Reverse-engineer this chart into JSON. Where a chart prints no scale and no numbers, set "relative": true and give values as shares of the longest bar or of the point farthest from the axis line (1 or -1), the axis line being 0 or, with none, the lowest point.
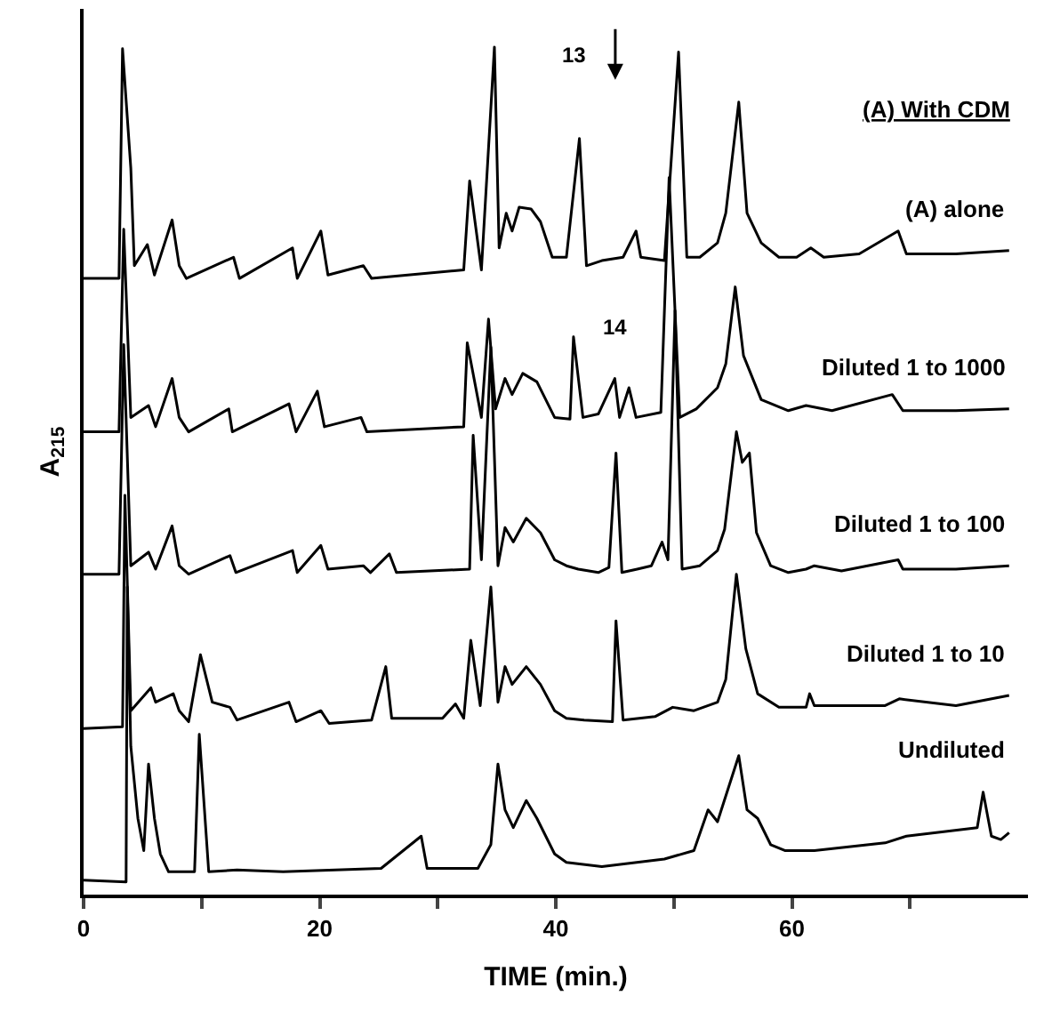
{
  "chart_data": {
    "type": "line",
    "xlabel": "TIME (min.)",
    "ylabel": "A$_{215}$",
    "relative": true,
    "xlim": [
      0,
      80
    ],
    "xticks": [
      0,
      {
        "value": 10,
        "label": null
      },
      20,
      {
        "value": 30,
        "label": null
      },
      40,
      {
        "value": 50,
        "label": null
      },
      60,
      {
        "value": 70,
        "label": null
      }
    ],
    "legend": false,
    "marker": "none",
    "tick_labels": "x",
    "annotations": [
      "(A) With CDM",
      "13",
      {
        "text": "14",
        "x": 45.0,
        "y": 0.609
      }
    ],
    "series": [
      {
        "name": "(A) alone",
        "color": "#000000",
        "x": [
          0,
          3.0,
          3.3,
          4.0,
          4.3,
          5.4,
          6.0,
          7.5,
          8.1,
          8.7,
          12.7,
          13.2,
          17.7,
          18.1,
          20.1,
          20.7,
          23.7,
          24.4,
          32.2,
          32.7,
          33.7,
          34.8,
          35.2,
          35.8,
          36.3,
          36.9,
          37.9,
          38.7,
          39.7,
          40.9,
          42.0,
          42.6,
          43.9,
          45.7,
          46.8,
          47.2,
          49.2,
          50.4,
          51.1,
          52.2,
          53.7,
          54.4,
          55.5,
          56.2,
          57.4,
          58.9,
          60.4,
          61.6,
          62.7,
          65.7,
          69.0,
          69.7,
          73.9,
          78.4
        ],
        "values": [
          0.727,
          0.727,
          0.998,
          0.857,
          0.742,
          0.767,
          0.731,
          0.796,
          0.742,
          0.727,
          0.752,
          0.727,
          0.763,
          0.727,
          0.783,
          0.731,
          0.742,
          0.727,
          0.737,
          0.842,
          0.737,
          1,
          0.763,
          0.804,
          0.783,
          0.811,
          0.809,
          0.794,
          0.752,
          0.752,
          0.892,
          0.742,
          0.748,
          0.752,
          0.783,
          0.752,
          0.748,
          0.994,
          0.752,
          0.752,
          0.769,
          0.804,
          0.935,
          0.804,
          0.769,
          0.752,
          0.752,
          0.763,
          0.752,
          0.756,
          0.783,
          0.756,
          0.756,
          0.76
        ]
      },
      {
        "name": "Diluted 1 to 1000",
        "color": "#000000",
        "x": [
          0,
          3.0,
          3.4,
          4.0,
          5.5,
          6.1,
          7.5,
          8.1,
          8.9,
          12.3,
          12.6,
          17.4,
          18.0,
          19.8,
          20.4,
          23.5,
          24.0,
          32.2,
          32.5,
          33.7,
          34.3,
          34.9,
          35.7,
          36.3,
          37.2,
          38.4,
          39.9,
          41.2,
          41.5,
          42.3,
          43.6,
          45.0,
          45.4,
          46.2,
          46.8,
          48.9,
          49.6,
          50.5,
          51.9,
          53.7,
          54.4,
          55.2,
          55.9,
          57.4,
          59.7,
          61.2,
          63.4,
          68.5,
          69.4,
          73.9,
          78.4
        ],
        "values": [
          0.546,
          0.546,
          0.785,
          0.563,
          0.577,
          0.552,
          0.609,
          0.563,
          0.546,
          0.573,
          0.546,
          0.579,
          0.546,
          0.594,
          0.552,
          0.563,
          0.546,
          0.552,
          0.651,
          0.563,
          0.679,
          0.573,
          0.609,
          0.59,
          0.615,
          0.605,
          0.563,
          0.561,
          0.658,
          0.563,
          0.567,
          0.609,
          0.563,
          0.598,
          0.563,
          0.569,
          0.846,
          0.563,
          0.573,
          0.598,
          0.626,
          0.717,
          0.636,
          0.584,
          0.571,
          0.577,
          0.571,
          0.59,
          0.571,
          0.571,
          0.573
        ]
      },
      {
        "name": "Diluted 1 to 100",
        "color": "#000000",
        "x": [
          0,
          3.0,
          3.4,
          4.0,
          5.5,
          6.1,
          7.5,
          8.1,
          8.9,
          12.4,
          12.9,
          17.7,
          18.1,
          20.1,
          20.7,
          23.7,
          24.3,
          25.9,
          26.5,
          32.7,
          33.0,
          33.7,
          34.5,
          35.1,
          35.7,
          36.4,
          37.5,
          38.7,
          39.9,
          40.9,
          41.9,
          43.6,
          44.5,
          45.1,
          45.6,
          46.9,
          48.1,
          49.0,
          49.5,
          50.1,
          50.7,
          52.2,
          53.7,
          54.3,
          55.3,
          55.8,
          56.4,
          57.0,
          58.2,
          59.7,
          61.2,
          61.9,
          64.2,
          69.0,
          69.4,
          73.9,
          78.4
        ],
        "values": [
          0.378,
          0.378,
          0.649,
          0.388,
          0.404,
          0.384,
          0.435,
          0.388,
          0.378,
          0.4,
          0.38,
          0.406,
          0.38,
          0.412,
          0.384,
          0.388,
          0.38,
          0.402,
          0.38,
          0.384,
          0.542,
          0.395,
          0.646,
          0.388,
          0.433,
          0.416,
          0.444,
          0.427,
          0.395,
          0.388,
          0.384,
          0.38,
          0.386,
          0.521,
          0.38,
          0.384,
          0.388,
          0.416,
          0.395,
          0.689,
          0.384,
          0.388,
          0.406,
          0.431,
          0.546,
          0.51,
          0.521,
          0.427,
          0.388,
          0.38,
          0.384,
          0.388,
          0.382,
          0.395,
          0.384,
          0.384,
          0.388
        ]
      },
      {
        "name": "Diluted 1 to 10",
        "color": "#000000",
        "x": [
          0,
          3.3,
          3.5,
          4.0,
          5.7,
          6.1,
          7.6,
          8.1,
          8.9,
          9.9,
          10.9,
          12.4,
          13.0,
          17.4,
          18.0,
          20.1,
          20.8,
          24.4,
          25.6,
          26.1,
          30.4,
          31.5,
          32.2,
          32.8,
          33.6,
          34.5,
          35.1,
          35.7,
          36.3,
          37.5,
          38.7,
          39.9,
          40.9,
          42.4,
          44.8,
          45.1,
          45.7,
          48.4,
          49.9,
          51.7,
          53.7,
          54.4,
          55.3,
          56.1,
          57.1,
          58.9,
          61.2,
          61.5,
          61.9,
          67.9,
          69.1,
          73.9,
          78.4
        ],
        "values": [
          0.196,
          0.198,
          0.471,
          0.217,
          0.244,
          0.227,
          0.237,
          0.217,
          0.204,
          0.283,
          0.227,
          0.221,
          0.206,
          0.227,
          0.204,
          0.217,
          0.202,
          0.206,
          0.269,
          0.208,
          0.208,
          0.225,
          0.208,
          0.3,
          0.223,
          0.363,
          0.227,
          0.269,
          0.248,
          0.269,
          0.248,
          0.217,
          0.208,
          0.206,
          0.204,
          0.323,
          0.206,
          0.21,
          0.221,
          0.217,
          0.227,
          0.254,
          0.378,
          0.29,
          0.237,
          0.221,
          0.221,
          0.237,
          0.223,
          0.223,
          0.231,
          0.223,
          0.235
        ]
      },
      {
        "name": "Undiluted",
        "color": "#000000",
        "x": [
          0,
          3.6,
          3.7,
          4.0,
          4.6,
          5.1,
          5.5,
          6.0,
          6.5,
          7.2,
          7.9,
          9.4,
          9.8,
          10.6,
          13.0,
          16.9,
          25.2,
          28.6,
          29.1,
          33.4,
          34.5,
          35.1,
          35.7,
          36.4,
          37.5,
          38.4,
          39.9,
          40.9,
          43.9,
          49.2,
          51.7,
          52.9,
          53.7,
          55.5,
          56.2,
          57.1,
          58.2,
          59.4,
          61.9,
          67.9,
          69.7,
          75.7,
          76.2,
          76.9,
          77.7,
          78.4
        ],
        "values": [
          0.017,
          0.015,
          0.363,
          0.175,
          0.09,
          0.052,
          0.154,
          0.09,
          0.048,
          0.027,
          0.027,
          0.027,
          0.189,
          0.027,
          0.029,
          0.027,
          0.031,
          0.069,
          0.031,
          0.031,
          0.059,
          0.154,
          0.1,
          0.079,
          0.111,
          0.09,
          0.048,
          0.038,
          0.033,
          0.042,
          0.052,
          0.1,
          0.086,
          0.164,
          0.1,
          0.09,
          0.059,
          0.052,
          0.052,
          0.061,
          0.069,
          0.079,
          0.121,
          0.069,
          0.065,
          0.073
        ]
      }
    ]
  }
}
